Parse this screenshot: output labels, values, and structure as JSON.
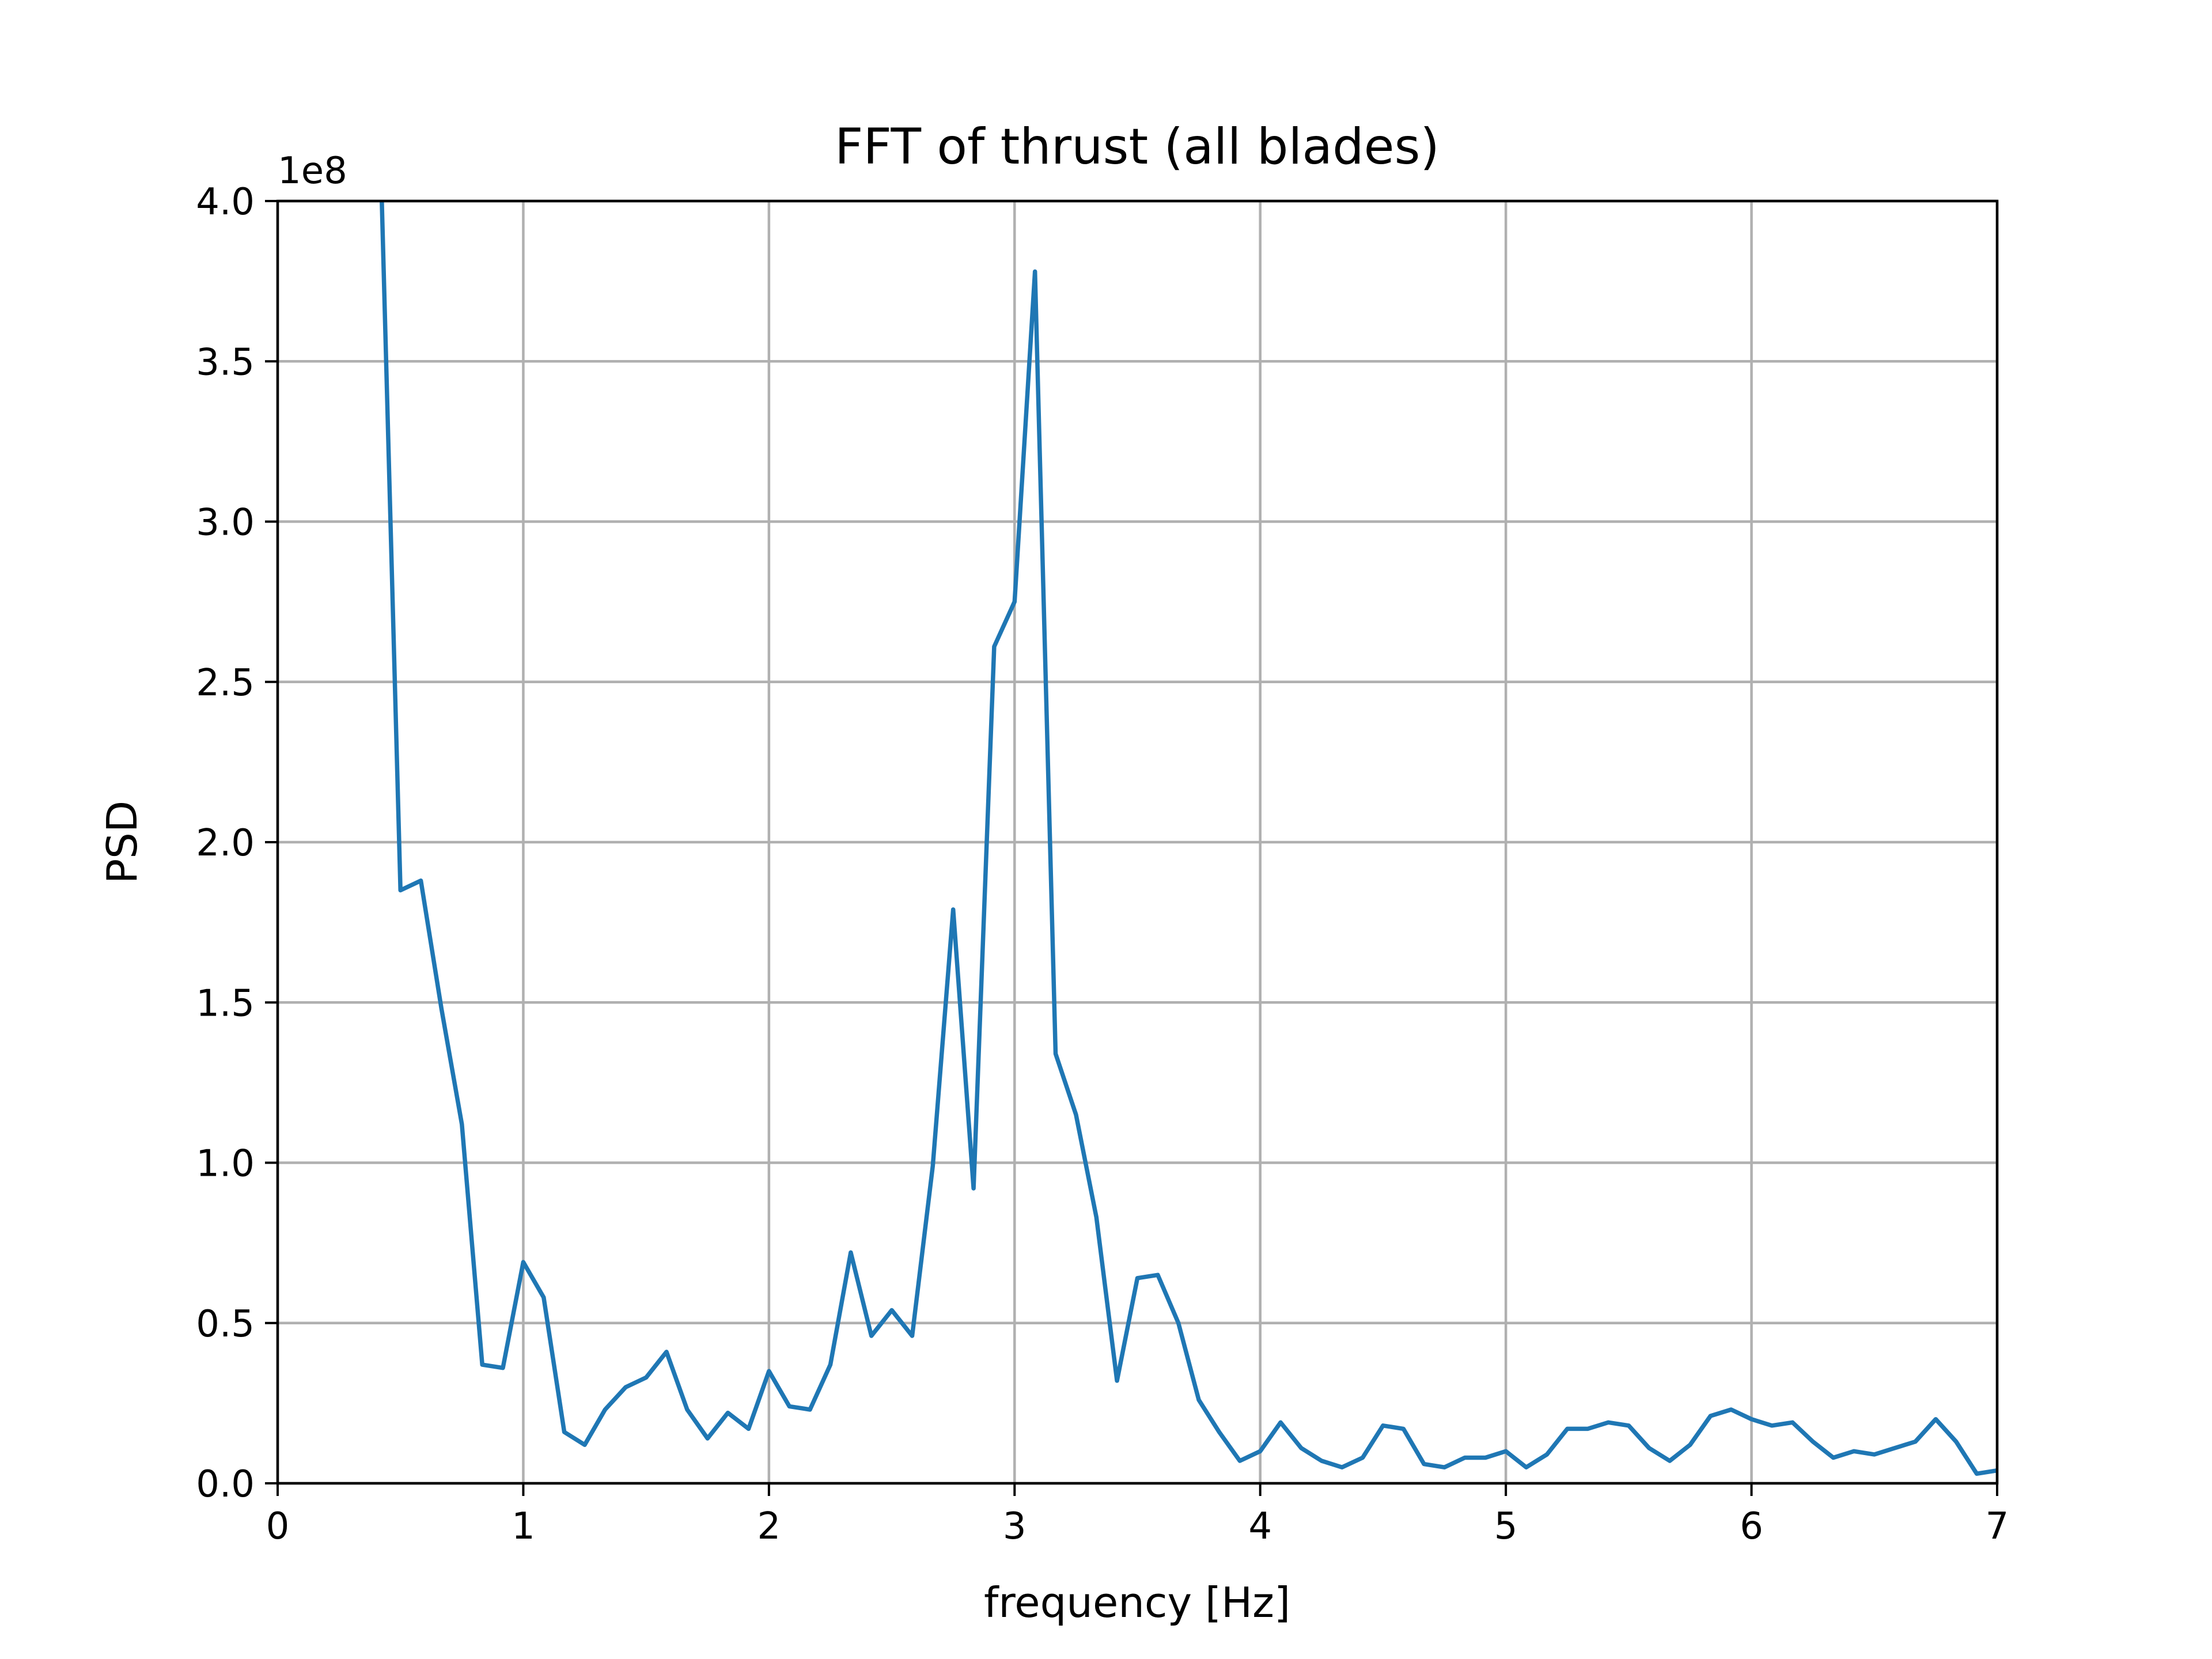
{
  "chart_data": {
    "type": "line",
    "title": "FFT of thrust (all blades)",
    "xlabel": "frequency [Hz]",
    "ylabel": "PSD",
    "y_offset_label": "1e8",
    "xlim": [
      0,
      7
    ],
    "ylim": [
      0,
      4.0
    ],
    "y_scale_factor": 100000000,
    "grid": true,
    "xticks": [
      0,
      1,
      2,
      3,
      4,
      5,
      6,
      7
    ],
    "xtick_labels": [
      "0",
      "1",
      "2",
      "3",
      "4",
      "5",
      "6",
      "7"
    ],
    "yticks": [
      0,
      0.5,
      1.0,
      1.5,
      2.0,
      2.5,
      3.0,
      3.5,
      4.0
    ],
    "ytick_labels": [
      "0.0",
      "0.5",
      "1.0",
      "1.5",
      "2.0",
      "2.5",
      "3.0",
      "3.5",
      "4.0"
    ],
    "series_color": "#1f77b4",
    "series": [
      {
        "x": [
          0.417,
          0.5,
          0.583,
          0.667,
          0.75,
          0.833,
          0.917,
          1.0,
          1.083,
          1.167,
          1.25,
          1.333,
          1.417,
          1.5,
          1.583,
          1.667,
          1.75,
          1.833,
          1.917,
          2.0,
          2.083,
          2.167,
          2.25,
          2.333,
          2.417,
          2.5,
          2.583,
          2.667,
          2.75,
          2.833,
          2.917,
          3.0,
          3.083,
          3.167,
          3.25,
          3.333,
          3.417,
          3.5,
          3.583,
          3.667,
          3.75,
          3.833,
          3.917,
          4.0,
          4.083,
          4.167,
          4.25,
          4.333,
          4.417,
          4.5,
          4.583,
          4.667,
          4.75,
          4.833,
          4.917,
          5.0,
          5.083,
          5.167,
          5.25,
          5.333,
          5.417,
          5.5,
          5.583,
          5.667,
          5.75,
          5.833,
          5.917,
          6.0,
          6.083,
          6.167,
          6.25,
          6.333,
          6.417,
          6.5,
          6.583,
          6.667,
          6.75,
          6.833,
          6.917,
          7.0
        ],
        "values": [
          4.2,
          1.85,
          1.88,
          1.48,
          1.12,
          0.37,
          0.36,
          0.69,
          0.58,
          0.16,
          0.12,
          0.23,
          0.3,
          0.33,
          0.41,
          0.23,
          0.14,
          0.22,
          0.17,
          0.35,
          0.24,
          0.23,
          0.37,
          0.72,
          0.46,
          0.54,
          0.46,
          0.99,
          1.79,
          0.92,
          2.61,
          2.75,
          3.78,
          1.34,
          1.15,
          0.83,
          0.32,
          0.64,
          0.65,
          0.5,
          0.26,
          0.16,
          0.07,
          0.1,
          0.19,
          0.11,
          0.07,
          0.05,
          0.08,
          0.18,
          0.17,
          0.06,
          0.05,
          0.08,
          0.08,
          0.1,
          0.05,
          0.09,
          0.17,
          0.17,
          0.19,
          0.18,
          0.11,
          0.07,
          0.12,
          0.21,
          0.23,
          0.2,
          0.18,
          0.19,
          0.13,
          0.08,
          0.1,
          0.09,
          0.11,
          0.13,
          0.2,
          0.13,
          0.03,
          0.04
        ]
      }
    ]
  }
}
